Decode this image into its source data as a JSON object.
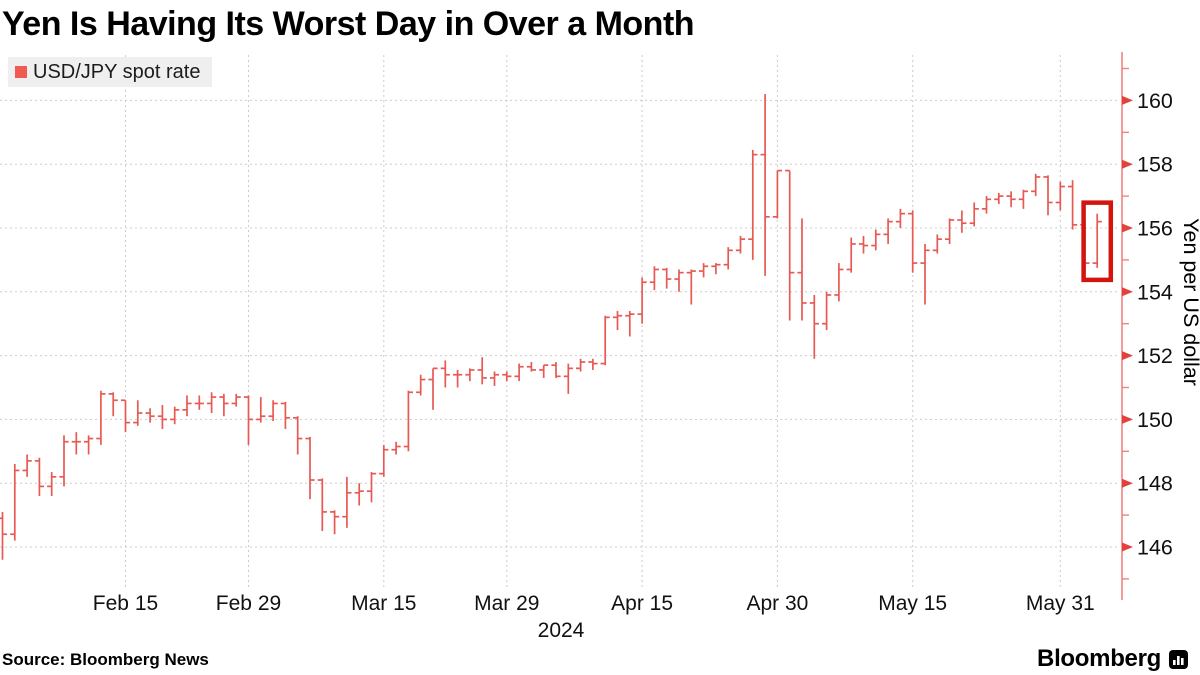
{
  "title": "Yen Is Having Its Worst Day in Over a Month",
  "legend": {
    "label": "USD/JPY spot rate",
    "swatch_color": "#ef5a52"
  },
  "source": "Source: Bloomberg News",
  "branding": {
    "logo_text": "Bloomberg",
    "logo_icon": "bar-chart-icon"
  },
  "colors": {
    "series": "#e75a53",
    "axis_line": "#f2837d",
    "tick_arrow": "#e2423c",
    "highlight_box": "#d31510",
    "gridline": "#cccccc",
    "text": "#111111"
  },
  "chart_data": {
    "type": "ohlc-bar",
    "series_name": "USD/JPY spot rate",
    "ylabel": "Yen per US dollar",
    "year_label": "2024",
    "ylim": [
      144.5,
      161.5
    ],
    "y_ticks": [
      146,
      148,
      150,
      152,
      154,
      156,
      158,
      160
    ],
    "y_minor_ticks": [
      145,
      147,
      149,
      151,
      153,
      155,
      157,
      159,
      161
    ],
    "grid": true,
    "legend_position": "top-left",
    "x_gridlines": [
      {
        "label": "Feb 15",
        "index": 10
      },
      {
        "label": "Feb 29",
        "index": 20
      },
      {
        "label": "Mar 15",
        "index": 31
      },
      {
        "label": "Mar 29",
        "index": 41
      },
      {
        "label": "Apr 15",
        "index": 52
      },
      {
        "label": "Apr 30",
        "index": 63
      },
      {
        "label": "May 15",
        "index": 74
      },
      {
        "label": "May 31",
        "index": 86
      }
    ],
    "highlight_last_bar": true,
    "bars": [
      {
        "date": "Feb 1",
        "o": 146.9,
        "h": 147.1,
        "l": 145.6,
        "c": 146.4
      },
      {
        "date": "Feb 2",
        "o": 146.4,
        "h": 148.6,
        "l": 146.2,
        "c": 148.4
      },
      {
        "date": "Feb 5",
        "o": 148.4,
        "h": 148.9,
        "l": 148.2,
        "c": 148.7
      },
      {
        "date": "Feb 6",
        "o": 148.7,
        "h": 148.8,
        "l": 147.6,
        "c": 147.9
      },
      {
        "date": "Feb 7",
        "o": 147.9,
        "h": 148.35,
        "l": 147.6,
        "c": 148.2
      },
      {
        "date": "Feb 8",
        "o": 148.2,
        "h": 149.5,
        "l": 147.9,
        "c": 149.3
      },
      {
        "date": "Feb 9",
        "o": 149.3,
        "h": 149.6,
        "l": 148.9,
        "c": 149.3
      },
      {
        "date": "Feb 12",
        "o": 149.3,
        "h": 149.5,
        "l": 148.9,
        "c": 149.4
      },
      {
        "date": "Feb 13",
        "o": 149.4,
        "h": 150.9,
        "l": 149.2,
        "c": 150.8
      },
      {
        "date": "Feb 14",
        "o": 150.8,
        "h": 150.85,
        "l": 150.1,
        "c": 150.6
      },
      {
        "date": "Feb 15",
        "o": 150.6,
        "h": 150.6,
        "l": 149.6,
        "c": 149.9
      },
      {
        "date": "Feb 16",
        "o": 149.9,
        "h": 150.6,
        "l": 149.8,
        "c": 150.2
      },
      {
        "date": "Feb 19",
        "o": 150.2,
        "h": 150.35,
        "l": 149.9,
        "c": 150.1
      },
      {
        "date": "Feb 20",
        "o": 150.1,
        "h": 150.45,
        "l": 149.7,
        "c": 150.0
      },
      {
        "date": "Feb 21",
        "o": 150.0,
        "h": 150.4,
        "l": 149.85,
        "c": 150.3
      },
      {
        "date": "Feb 22",
        "o": 150.3,
        "h": 150.75,
        "l": 150.1,
        "c": 150.5
      },
      {
        "date": "Feb 23",
        "o": 150.5,
        "h": 150.75,
        "l": 150.3,
        "c": 150.5
      },
      {
        "date": "Feb 26",
        "o": 150.5,
        "h": 150.85,
        "l": 150.2,
        "c": 150.7
      },
      {
        "date": "Feb 27",
        "o": 150.7,
        "h": 150.8,
        "l": 150.1,
        "c": 150.5
      },
      {
        "date": "Feb 28",
        "o": 150.5,
        "h": 150.8,
        "l": 150.4,
        "c": 150.7
      },
      {
        "date": "Feb 29",
        "o": 150.7,
        "h": 150.75,
        "l": 149.2,
        "c": 150.0
      },
      {
        "date": "Mar 1",
        "o": 150.0,
        "h": 150.7,
        "l": 149.9,
        "c": 150.1
      },
      {
        "date": "Mar 4",
        "o": 150.1,
        "h": 150.6,
        "l": 149.95,
        "c": 150.5
      },
      {
        "date": "Mar 5",
        "o": 150.5,
        "h": 150.55,
        "l": 149.7,
        "c": 150.05
      },
      {
        "date": "Mar 6",
        "o": 150.05,
        "h": 150.1,
        "l": 148.9,
        "c": 149.4
      },
      {
        "date": "Mar 7",
        "o": 149.4,
        "h": 149.45,
        "l": 147.5,
        "c": 148.1
      },
      {
        "date": "Mar 8",
        "o": 148.1,
        "h": 148.15,
        "l": 146.5,
        "c": 147.1
      },
      {
        "date": "Mar 11",
        "o": 147.1,
        "h": 147.15,
        "l": 146.4,
        "c": 146.95
      },
      {
        "date": "Mar 12",
        "o": 146.95,
        "h": 148.2,
        "l": 146.6,
        "c": 147.7
      },
      {
        "date": "Mar 13",
        "o": 147.7,
        "h": 148.0,
        "l": 147.3,
        "c": 147.75
      },
      {
        "date": "Mar 14",
        "o": 147.75,
        "h": 148.35,
        "l": 147.4,
        "c": 148.3
      },
      {
        "date": "Mar 15",
        "o": 148.3,
        "h": 149.2,
        "l": 148.2,
        "c": 149.05
      },
      {
        "date": "Mar 18",
        "o": 149.05,
        "h": 149.3,
        "l": 148.9,
        "c": 149.15
      },
      {
        "date": "Mar 19",
        "o": 149.15,
        "h": 150.9,
        "l": 149.0,
        "c": 150.85
      },
      {
        "date": "Mar 20",
        "o": 150.85,
        "h": 151.4,
        "l": 150.75,
        "c": 151.25
      },
      {
        "date": "Mar 21",
        "o": 151.25,
        "h": 151.6,
        "l": 150.3,
        "c": 151.6
      },
      {
        "date": "Mar 22",
        "o": 151.6,
        "h": 151.85,
        "l": 151.0,
        "c": 151.4
      },
      {
        "date": "Mar 25",
        "o": 151.4,
        "h": 151.55,
        "l": 151.0,
        "c": 151.4
      },
      {
        "date": "Mar 26",
        "o": 151.4,
        "h": 151.6,
        "l": 151.2,
        "c": 151.55
      },
      {
        "date": "Mar 27",
        "o": 151.55,
        "h": 151.95,
        "l": 151.1,
        "c": 151.3
      },
      {
        "date": "Mar 28",
        "o": 151.3,
        "h": 151.5,
        "l": 151.05,
        "c": 151.4
      },
      {
        "date": "Mar 29",
        "o": 151.4,
        "h": 151.5,
        "l": 151.2,
        "c": 151.35
      },
      {
        "date": "Apr 1",
        "o": 151.35,
        "h": 151.75,
        "l": 151.2,
        "c": 151.65
      },
      {
        "date": "Apr 2",
        "o": 151.65,
        "h": 151.8,
        "l": 151.5,
        "c": 151.55
      },
      {
        "date": "Apr 3",
        "o": 151.55,
        "h": 151.7,
        "l": 151.3,
        "c": 151.7
      },
      {
        "date": "Apr 4",
        "o": 151.7,
        "h": 151.8,
        "l": 151.3,
        "c": 151.35
      },
      {
        "date": "Apr 5",
        "o": 151.35,
        "h": 151.75,
        "l": 150.8,
        "c": 151.6
      },
      {
        "date": "Apr 8",
        "o": 151.6,
        "h": 151.9,
        "l": 151.5,
        "c": 151.8
      },
      {
        "date": "Apr 9",
        "o": 151.8,
        "h": 151.9,
        "l": 151.55,
        "c": 151.75
      },
      {
        "date": "Apr 10",
        "o": 151.75,
        "h": 153.25,
        "l": 151.7,
        "c": 153.2
      },
      {
        "date": "Apr 11",
        "o": 153.2,
        "h": 153.4,
        "l": 152.8,
        "c": 153.25
      },
      {
        "date": "Apr 12",
        "o": 153.25,
        "h": 153.4,
        "l": 152.6,
        "c": 153.3
      },
      {
        "date": "Apr 15",
        "o": 153.3,
        "h": 154.45,
        "l": 153.0,
        "c": 154.3
      },
      {
        "date": "Apr 16",
        "o": 154.3,
        "h": 154.8,
        "l": 154.05,
        "c": 154.7
      },
      {
        "date": "Apr 17",
        "o": 154.7,
        "h": 154.75,
        "l": 154.1,
        "c": 154.4
      },
      {
        "date": "Apr 18",
        "o": 154.4,
        "h": 154.7,
        "l": 154.0,
        "c": 154.6
      },
      {
        "date": "Apr 19",
        "o": 154.6,
        "h": 154.7,
        "l": 153.6,
        "c": 154.65
      },
      {
        "date": "Apr 22",
        "o": 154.65,
        "h": 154.9,
        "l": 154.45,
        "c": 154.8
      },
      {
        "date": "Apr 23",
        "o": 154.8,
        "h": 154.9,
        "l": 154.55,
        "c": 154.85
      },
      {
        "date": "Apr 24",
        "o": 154.85,
        "h": 155.4,
        "l": 154.7,
        "c": 155.3
      },
      {
        "date": "Apr 25",
        "o": 155.3,
        "h": 155.75,
        "l": 155.2,
        "c": 155.65
      },
      {
        "date": "Apr 26",
        "o": 155.65,
        "h": 158.45,
        "l": 155.0,
        "c": 158.3
      },
      {
        "date": "Apr 29",
        "o": 158.3,
        "h": 160.2,
        "l": 154.5,
        "c": 156.35
      },
      {
        "date": "Apr 30",
        "o": 156.35,
        "h": 157.8,
        "l": 156.3,
        "c": 157.8
      },
      {
        "date": "May 1",
        "o": 157.8,
        "h": 157.8,
        "l": 153.1,
        "c": 154.6
      },
      {
        "date": "May 2",
        "o": 154.6,
        "h": 156.3,
        "l": 153.1,
        "c": 153.65
      },
      {
        "date": "May 3",
        "o": 153.65,
        "h": 153.9,
        "l": 151.9,
        "c": 153.0
      },
      {
        "date": "May 6",
        "o": 153.0,
        "h": 154.0,
        "l": 152.8,
        "c": 153.9
      },
      {
        "date": "May 7",
        "o": 153.9,
        "h": 154.9,
        "l": 153.7,
        "c": 154.7
      },
      {
        "date": "May 8",
        "o": 154.7,
        "h": 155.7,
        "l": 154.6,
        "c": 155.5
      },
      {
        "date": "May 9",
        "o": 155.5,
        "h": 155.75,
        "l": 155.2,
        "c": 155.45
      },
      {
        "date": "May 10",
        "o": 155.45,
        "h": 155.95,
        "l": 155.3,
        "c": 155.8
      },
      {
        "date": "May 13",
        "o": 155.8,
        "h": 156.3,
        "l": 155.5,
        "c": 156.2
      },
      {
        "date": "May 14",
        "o": 156.2,
        "h": 156.6,
        "l": 156.0,
        "c": 156.45
      },
      {
        "date": "May 15",
        "o": 156.45,
        "h": 156.55,
        "l": 154.6,
        "c": 154.9
      },
      {
        "date": "May 16",
        "o": 154.9,
        "h": 155.5,
        "l": 153.6,
        "c": 155.3
      },
      {
        "date": "May 17",
        "o": 155.3,
        "h": 155.8,
        "l": 155.2,
        "c": 155.65
      },
      {
        "date": "May 20",
        "o": 155.65,
        "h": 156.3,
        "l": 155.5,
        "c": 156.25
      },
      {
        "date": "May 21",
        "o": 156.25,
        "h": 156.55,
        "l": 155.85,
        "c": 156.15
      },
      {
        "date": "May 22",
        "o": 156.15,
        "h": 156.8,
        "l": 156.05,
        "c": 156.6
      },
      {
        "date": "May 23",
        "o": 156.6,
        "h": 157.0,
        "l": 156.45,
        "c": 156.9
      },
      {
        "date": "May 24",
        "o": 156.9,
        "h": 157.1,
        "l": 156.75,
        "c": 157.0
      },
      {
        "date": "May 27",
        "o": 157.0,
        "h": 157.15,
        "l": 156.65,
        "c": 156.9
      },
      {
        "date": "May 28",
        "o": 156.9,
        "h": 157.2,
        "l": 156.6,
        "c": 157.15
      },
      {
        "date": "May 29",
        "o": 157.15,
        "h": 157.7,
        "l": 157.0,
        "c": 157.6
      },
      {
        "date": "May 30",
        "o": 157.6,
        "h": 157.65,
        "l": 156.4,
        "c": 156.8
      },
      {
        "date": "May 31",
        "o": 156.8,
        "h": 157.45,
        "l": 156.55,
        "c": 157.3
      },
      {
        "date": "Jun 3",
        "o": 157.3,
        "h": 157.5,
        "l": 155.95,
        "c": 156.1
      },
      {
        "date": "Jun 4",
        "o": 156.1,
        "h": 156.2,
        "l": 154.55,
        "c": 154.9
      },
      {
        "date": "Jun 5",
        "o": 154.9,
        "h": 156.45,
        "l": 154.75,
        "c": 156.2
      }
    ]
  }
}
